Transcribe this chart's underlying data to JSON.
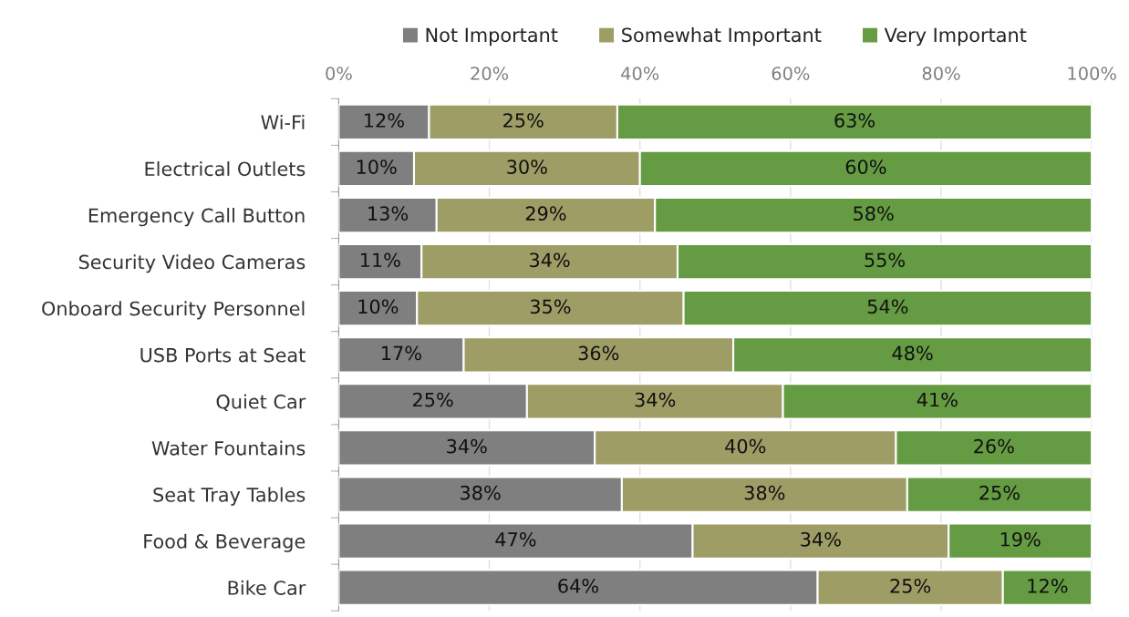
{
  "chart_data": {
    "type": "bar",
    "orientation": "horizontal",
    "stacked": true,
    "categories": [
      "Wi-Fi",
      "Electrical Outlets",
      "Emergency Call Button",
      "Security Video Cameras",
      "Onboard Security Personnel",
      "USB Ports at Seat",
      "Quiet Car",
      "Water Fountains",
      "Seat Tray Tables",
      "Food & Beverage",
      "Bike Car"
    ],
    "series": [
      {
        "name": "Not Important",
        "color": "#7f7f7f",
        "values": [
          12,
          10,
          13,
          11,
          10.4,
          16.6,
          25,
          34,
          37.6,
          47,
          63.6
        ],
        "value_labels": [
          "12%",
          "10%",
          "13%",
          "11%",
          "10%",
          "17%",
          "25%",
          "34%",
          "38%",
          "47%",
          "64%"
        ]
      },
      {
        "name": "Somewhat Important",
        "color": "#9e9d66",
        "values": [
          25,
          30,
          29,
          34,
          35.4,
          35.8,
          34,
          40,
          37.9,
          34,
          24.6
        ],
        "value_labels": [
          "25%",
          "30%",
          "29%",
          "34%",
          "35%",
          "36%",
          "34%",
          "40%",
          "38%",
          "34%",
          "25%"
        ]
      },
      {
        "name": "Very Important",
        "color": "#659c43",
        "values": [
          63,
          60,
          58,
          55,
          54.2,
          47.6,
          41,
          26,
          24.5,
          19,
          11.8
        ],
        "value_labels": [
          "63%",
          "60%",
          "58%",
          "55%",
          "54%",
          "48%",
          "41%",
          "26%",
          "25%",
          "19%",
          "12%"
        ]
      }
    ],
    "xlim": [
      0,
      100
    ],
    "xticks": [
      {
        "value": 0,
        "label": "0%"
      },
      {
        "value": 20,
        "label": "20%"
      },
      {
        "value": 40,
        "label": "40%"
      },
      {
        "value": 60,
        "label": "60%"
      },
      {
        "value": 80,
        "label": "80%"
      },
      {
        "value": 100,
        "label": "100%"
      }
    ],
    "grid": "x",
    "legend": "top"
  }
}
